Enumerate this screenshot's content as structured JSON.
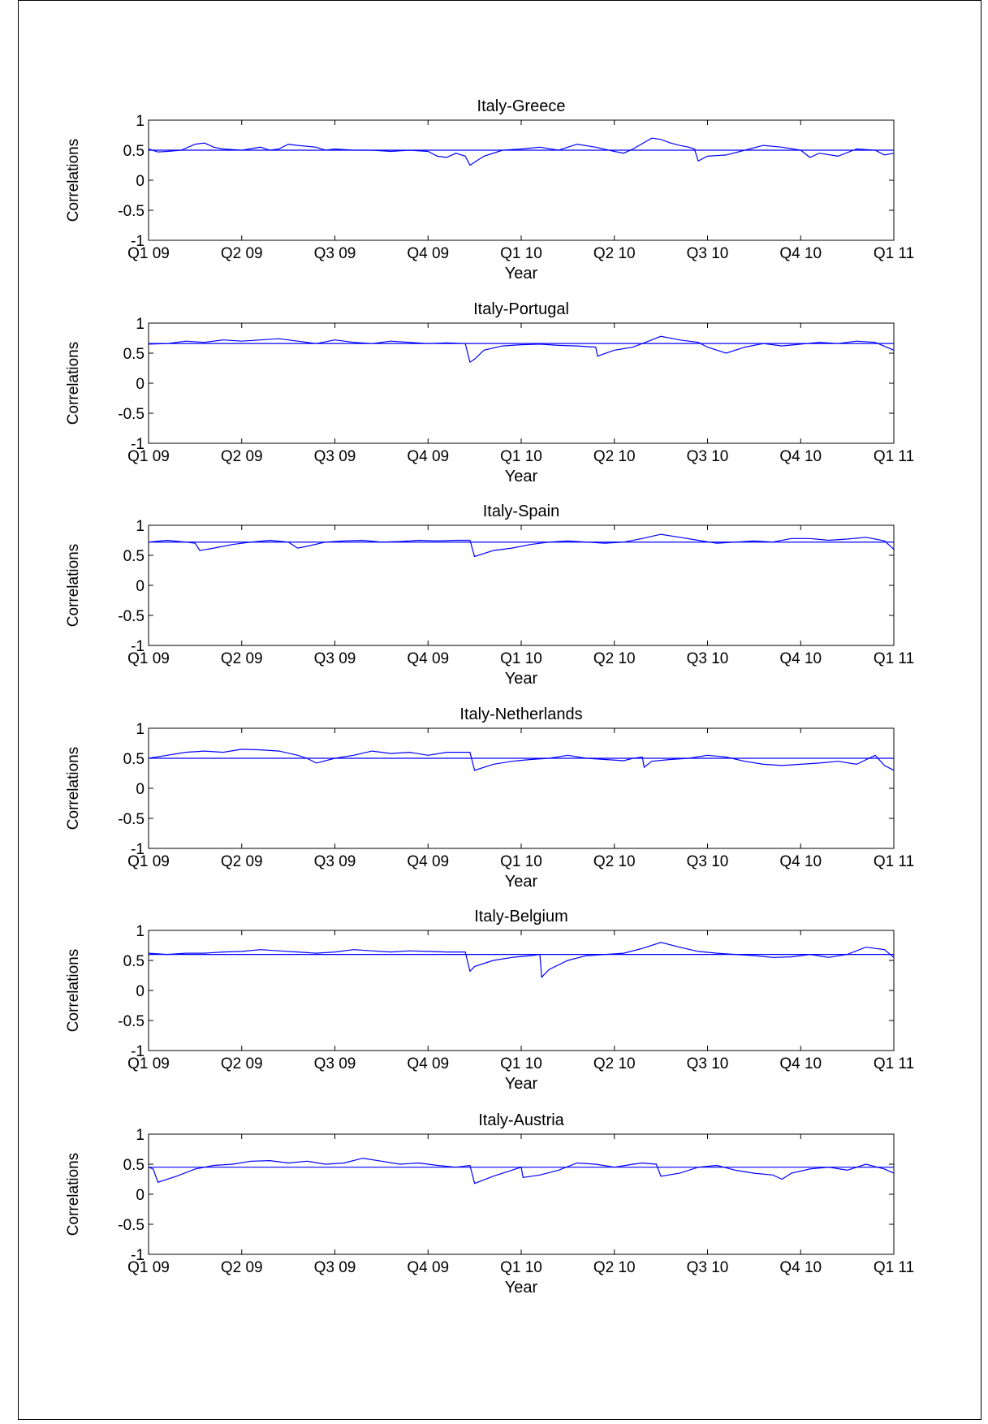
{
  "figure": {
    "line_color": "#0000ff",
    "x_tick_labels": [
      "Q1 09",
      "Q2 09",
      "Q3 09",
      "Q4 09",
      "Q1 10",
      "Q2 10",
      "Q3 10",
      "Q4 10",
      "Q1 11"
    ],
    "y_tick_labels": [
      "1",
      "0.5",
      "0",
      "-0.5",
      "-1"
    ],
    "xlabel": "Year",
    "ylabel": "Correlations"
  },
  "chart_data": [
    {
      "type": "line",
      "title": "Italy-Greece",
      "xlabel": "Year",
      "ylabel": "Correlations",
      "x_ticks": [
        "Q1 09",
        "Q2 09",
        "Q3 09",
        "Q4 09",
        "Q1 10",
        "Q2 10",
        "Q3 10",
        "Q4 10",
        "Q1 11"
      ],
      "xlim": [
        0,
        8
      ],
      "ylim": [
        -1,
        1
      ],
      "y_ticks": [
        1,
        0.5,
        0,
        -0.5,
        -1
      ],
      "mean_line": 0.5,
      "x": [
        0,
        0.1,
        0.2,
        0.35,
        0.5,
        0.6,
        0.7,
        0.8,
        1.0,
        1.2,
        1.3,
        1.4,
        1.5,
        1.6,
        1.8,
        1.9,
        2.0,
        2.2,
        2.4,
        2.6,
        2.8,
        3.0,
        3.1,
        3.2,
        3.3,
        3.4,
        3.45,
        3.5,
        3.6,
        3.8,
        4.0,
        4.2,
        4.4,
        4.6,
        4.8,
        5.0,
        5.1,
        5.2,
        5.4,
        5.5,
        5.6,
        5.7,
        5.8,
        5.86,
        5.9,
        6.0,
        6.2,
        6.4,
        6.6,
        6.8,
        7.0,
        7.1,
        7.2,
        7.4,
        7.6,
        7.8,
        7.9,
        8.0
      ],
      "y": [
        0.52,
        0.47,
        0.48,
        0.5,
        0.6,
        0.62,
        0.55,
        0.52,
        0.5,
        0.55,
        0.5,
        0.52,
        0.6,
        0.58,
        0.55,
        0.5,
        0.52,
        0.5,
        0.5,
        0.48,
        0.5,
        0.48,
        0.4,
        0.38,
        0.45,
        0.4,
        0.25,
        0.3,
        0.4,
        0.5,
        0.52,
        0.55,
        0.5,
        0.6,
        0.55,
        0.48,
        0.45,
        0.52,
        0.7,
        0.68,
        0.62,
        0.58,
        0.55,
        0.52,
        0.32,
        0.4,
        0.42,
        0.5,
        0.58,
        0.55,
        0.5,
        0.38,
        0.45,
        0.4,
        0.52,
        0.5,
        0.42,
        0.45
      ]
    },
    {
      "type": "line",
      "title": "Italy-Portugal",
      "xlabel": "Year",
      "ylabel": "Correlations",
      "x_ticks": [
        "Q1 09",
        "Q2 09",
        "Q3 09",
        "Q4 09",
        "Q1 10",
        "Q2 10",
        "Q3 10",
        "Q4 10",
        "Q1 11"
      ],
      "xlim": [
        0,
        8
      ],
      "ylim": [
        -1,
        1
      ],
      "y_ticks": [
        1,
        0.5,
        0,
        -0.5,
        -1
      ],
      "mean_line": 0.66,
      "x": [
        0,
        0.2,
        0.4,
        0.6,
        0.8,
        1.0,
        1.2,
        1.4,
        1.6,
        1.8,
        2.0,
        2.2,
        2.4,
        2.6,
        2.8,
        3.0,
        3.2,
        3.4,
        3.45,
        3.5,
        3.6,
        3.8,
        4.0,
        4.2,
        4.4,
        4.6,
        4.8,
        4.82,
        5.0,
        5.2,
        5.4,
        5.5,
        5.7,
        5.9,
        6.0,
        6.1,
        6.2,
        6.4,
        6.6,
        6.8,
        7.0,
        7.2,
        7.4,
        7.6,
        7.8,
        8.0
      ],
      "y": [
        0.65,
        0.66,
        0.7,
        0.68,
        0.72,
        0.7,
        0.72,
        0.74,
        0.7,
        0.66,
        0.72,
        0.68,
        0.66,
        0.7,
        0.68,
        0.66,
        0.67,
        0.66,
        0.35,
        0.4,
        0.55,
        0.62,
        0.64,
        0.65,
        0.63,
        0.62,
        0.6,
        0.45,
        0.55,
        0.6,
        0.72,
        0.78,
        0.72,
        0.68,
        0.6,
        0.55,
        0.5,
        0.6,
        0.66,
        0.62,
        0.65,
        0.68,
        0.66,
        0.7,
        0.68,
        0.55
      ]
    },
    {
      "type": "line",
      "title": "Italy-Spain",
      "xlabel": "Year",
      "ylabel": "Correlations",
      "x_ticks": [
        "Q1 09",
        "Q2 09",
        "Q3 09",
        "Q4 09",
        "Q1 10",
        "Q2 10",
        "Q3 10",
        "Q4 10",
        "Q1 11"
      ],
      "xlim": [
        0,
        8
      ],
      "ylim": [
        -1,
        1
      ],
      "y_ticks": [
        1,
        0.5,
        0,
        -0.5,
        -1
      ],
      "mean_line": 0.72,
      "x": [
        0,
        0.2,
        0.4,
        0.5,
        0.55,
        0.7,
        0.9,
        1.1,
        1.3,
        1.5,
        1.6,
        1.7,
        1.9,
        2.1,
        2.3,
        2.5,
        2.7,
        2.9,
        3.1,
        3.3,
        3.45,
        3.5,
        3.7,
        3.9,
        4.1,
        4.3,
        4.5,
        4.7,
        4.9,
        5.1,
        5.3,
        5.5,
        5.7,
        5.9,
        6.1,
        6.3,
        6.5,
        6.7,
        6.9,
        7.1,
        7.3,
        7.5,
        7.7,
        7.9,
        8.0
      ],
      "y": [
        0.72,
        0.75,
        0.72,
        0.7,
        0.58,
        0.62,
        0.68,
        0.72,
        0.75,
        0.72,
        0.62,
        0.65,
        0.72,
        0.74,
        0.75,
        0.72,
        0.73,
        0.75,
        0.74,
        0.75,
        0.75,
        0.48,
        0.58,
        0.62,
        0.68,
        0.72,
        0.74,
        0.72,
        0.7,
        0.72,
        0.78,
        0.85,
        0.8,
        0.75,
        0.7,
        0.72,
        0.74,
        0.72,
        0.78,
        0.78,
        0.75,
        0.77,
        0.8,
        0.74,
        0.6
      ]
    },
    {
      "type": "line",
      "title": "Italy-Netherlands",
      "xlabel": "Year",
      "ylabel": "Correlations",
      "x_ticks": [
        "Q1 09",
        "Q2 09",
        "Q3 09",
        "Q4 09",
        "Q1 10",
        "Q2 10",
        "Q3 10",
        "Q4 10",
        "Q1 11"
      ],
      "xlim": [
        0,
        8
      ],
      "ylim": [
        -1,
        1
      ],
      "y_ticks": [
        1,
        0.5,
        0,
        -0.5,
        -1
      ],
      "mean_line": 0.5,
      "x": [
        0,
        0.2,
        0.4,
        0.6,
        0.8,
        1.0,
        1.2,
        1.4,
        1.6,
        1.7,
        1.8,
        2.0,
        2.2,
        2.4,
        2.6,
        2.8,
        3.0,
        3.2,
        3.4,
        3.45,
        3.5,
        3.7,
        3.9,
        4.1,
        4.3,
        4.5,
        4.7,
        4.9,
        5.1,
        5.2,
        5.3,
        5.32,
        5.4,
        5.6,
        5.8,
        6.0,
        6.2,
        6.4,
        6.6,
        6.8,
        7.0,
        7.2,
        7.4,
        7.6,
        7.8,
        7.9,
        8.0
      ],
      "y": [
        0.5,
        0.55,
        0.6,
        0.62,
        0.6,
        0.65,
        0.64,
        0.62,
        0.55,
        0.5,
        0.42,
        0.5,
        0.55,
        0.62,
        0.58,
        0.6,
        0.55,
        0.6,
        0.6,
        0.6,
        0.3,
        0.4,
        0.45,
        0.48,
        0.5,
        0.55,
        0.5,
        0.48,
        0.46,
        0.5,
        0.52,
        0.35,
        0.45,
        0.48,
        0.5,
        0.55,
        0.52,
        0.45,
        0.4,
        0.38,
        0.4,
        0.42,
        0.45,
        0.4,
        0.55,
        0.38,
        0.3
      ]
    },
    {
      "type": "line",
      "title": "Italy-Belgium",
      "xlabel": "Year",
      "ylabel": "Correlations",
      "x_ticks": [
        "Q1 09",
        "Q2 09",
        "Q3 09",
        "Q4 09",
        "Q1 10",
        "Q2 10",
        "Q3 10",
        "Q4 10",
        "Q1 11"
      ],
      "xlim": [
        0,
        8
      ],
      "ylim": [
        -1,
        1
      ],
      "y_ticks": [
        1,
        0.5,
        0,
        -0.5,
        -1
      ],
      "mean_line": 0.6,
      "x": [
        0,
        0.2,
        0.4,
        0.6,
        0.8,
        1.0,
        1.2,
        1.4,
        1.6,
        1.8,
        2.0,
        2.2,
        2.4,
        2.6,
        2.8,
        3.0,
        3.2,
        3.4,
        3.45,
        3.5,
        3.7,
        3.9,
        4.1,
        4.2,
        4.22,
        4.3,
        4.5,
        4.7,
        4.9,
        5.1,
        5.3,
        5.5,
        5.7,
        5.9,
        6.1,
        6.3,
        6.5,
        6.7,
        6.9,
        7.1,
        7.3,
        7.5,
        7.7,
        7.9,
        8.0
      ],
      "y": [
        0.62,
        0.6,
        0.62,
        0.62,
        0.64,
        0.65,
        0.68,
        0.66,
        0.64,
        0.62,
        0.64,
        0.68,
        0.66,
        0.64,
        0.66,
        0.65,
        0.64,
        0.64,
        0.32,
        0.4,
        0.5,
        0.55,
        0.58,
        0.6,
        0.22,
        0.35,
        0.5,
        0.58,
        0.6,
        0.62,
        0.7,
        0.8,
        0.72,
        0.65,
        0.62,
        0.6,
        0.58,
        0.55,
        0.56,
        0.6,
        0.55,
        0.6,
        0.72,
        0.68,
        0.55
      ]
    },
    {
      "type": "line",
      "title": "Italy-Austria",
      "xlabel": "Year",
      "ylabel": "Correlations",
      "x_ticks": [
        "Q1 09",
        "Q2 09",
        "Q3 09",
        "Q4 09",
        "Q1 10",
        "Q2 10",
        "Q3 10",
        "Q4 10",
        "Q1 11"
      ],
      "xlim": [
        0,
        8
      ],
      "ylim": [
        -1,
        1
      ],
      "y_ticks": [
        1,
        0.5,
        0,
        -0.5,
        -1
      ],
      "mean_line": 0.45,
      "x": [
        0,
        0.05,
        0.1,
        0.3,
        0.5,
        0.7,
        0.9,
        1.1,
        1.3,
        1.5,
        1.7,
        1.9,
        2.1,
        2.3,
        2.5,
        2.7,
        2.9,
        3.1,
        3.3,
        3.45,
        3.5,
        3.7,
        3.9,
        4.0,
        4.02,
        4.2,
        4.4,
        4.6,
        4.8,
        5.0,
        5.2,
        5.3,
        5.45,
        5.5,
        5.7,
        5.9,
        6.1,
        6.3,
        6.5,
        6.7,
        6.8,
        6.9,
        7.1,
        7.3,
        7.5,
        7.7,
        7.9,
        8.0
      ],
      "y": [
        0.45,
        0.42,
        0.2,
        0.3,
        0.42,
        0.48,
        0.5,
        0.55,
        0.56,
        0.52,
        0.55,
        0.5,
        0.52,
        0.6,
        0.55,
        0.5,
        0.52,
        0.48,
        0.45,
        0.48,
        0.18,
        0.3,
        0.4,
        0.45,
        0.28,
        0.32,
        0.4,
        0.52,
        0.5,
        0.45,
        0.5,
        0.52,
        0.5,
        0.3,
        0.35,
        0.45,
        0.48,
        0.4,
        0.35,
        0.32,
        0.25,
        0.35,
        0.42,
        0.45,
        0.4,
        0.5,
        0.42,
        0.35
      ]
    }
  ]
}
